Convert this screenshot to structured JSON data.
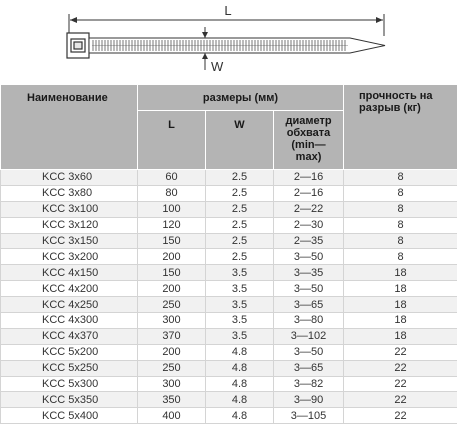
{
  "diagram": {
    "length_label": "L",
    "width_label": "W"
  },
  "table": {
    "headers": {
      "name": "Наименование",
      "dimensions": "размеры (мм)",
      "strength_line1": "прочность на",
      "strength_line2": "разрыв (кг)",
      "length": "L",
      "width": "W",
      "diameter_line1": "диаметр",
      "diameter_line2": "обхвата",
      "diameter_line3": "(min—",
      "diameter_line4": "max)"
    },
    "rows": [
      {
        "name": "KCC 3x60",
        "l": "60",
        "w": "2.5",
        "diam": "2—16",
        "strength": "8"
      },
      {
        "name": "KCC 3x80",
        "l": "80",
        "w": "2.5",
        "diam": "2—16",
        "strength": "8"
      },
      {
        "name": "KCC 3x100",
        "l": "100",
        "w": "2.5",
        "diam": "2—22",
        "strength": "8"
      },
      {
        "name": "KCC 3x120",
        "l": "120",
        "w": "2.5",
        "diam": "2—30",
        "strength": "8"
      },
      {
        "name": "KCC 3x150",
        "l": "150",
        "w": "2.5",
        "diam": "2—35",
        "strength": "8"
      },
      {
        "name": "KCC 3x200",
        "l": "200",
        "w": "2.5",
        "diam": "3—50",
        "strength": "8"
      },
      {
        "name": "KCC 4x150",
        "l": "150",
        "w": "3.5",
        "diam": "3—35",
        "strength": "18"
      },
      {
        "name": "KCC 4x200",
        "l": "200",
        "w": "3.5",
        "diam": "3—50",
        "strength": "18"
      },
      {
        "name": "KCC 4x250",
        "l": "250",
        "w": "3.5",
        "diam": "3—65",
        "strength": "18"
      },
      {
        "name": "KCC 4x300",
        "l": "300",
        "w": "3.5",
        "diam": "3—80",
        "strength": "18"
      },
      {
        "name": "KCC 4x370",
        "l": "370",
        "w": "3.5",
        "diam": "3—102",
        "strength": "18"
      },
      {
        "name": "KCC 5x200",
        "l": "200",
        "w": "4.8",
        "diam": "3—50",
        "strength": "22"
      },
      {
        "name": "KCC 5x250",
        "l": "250",
        "w": "4.8",
        "diam": "3—65",
        "strength": "22"
      },
      {
        "name": "KCC 5x300",
        "l": "300",
        "w": "4.8",
        "diam": "3—82",
        "strength": "22"
      },
      {
        "name": "KCC 5x350",
        "l": "350",
        "w": "4.8",
        "diam": "3—90",
        "strength": "22"
      },
      {
        "name": "KCC 5x400",
        "l": "400",
        "w": "4.8",
        "diam": "3—105",
        "strength": "22"
      }
    ]
  }
}
